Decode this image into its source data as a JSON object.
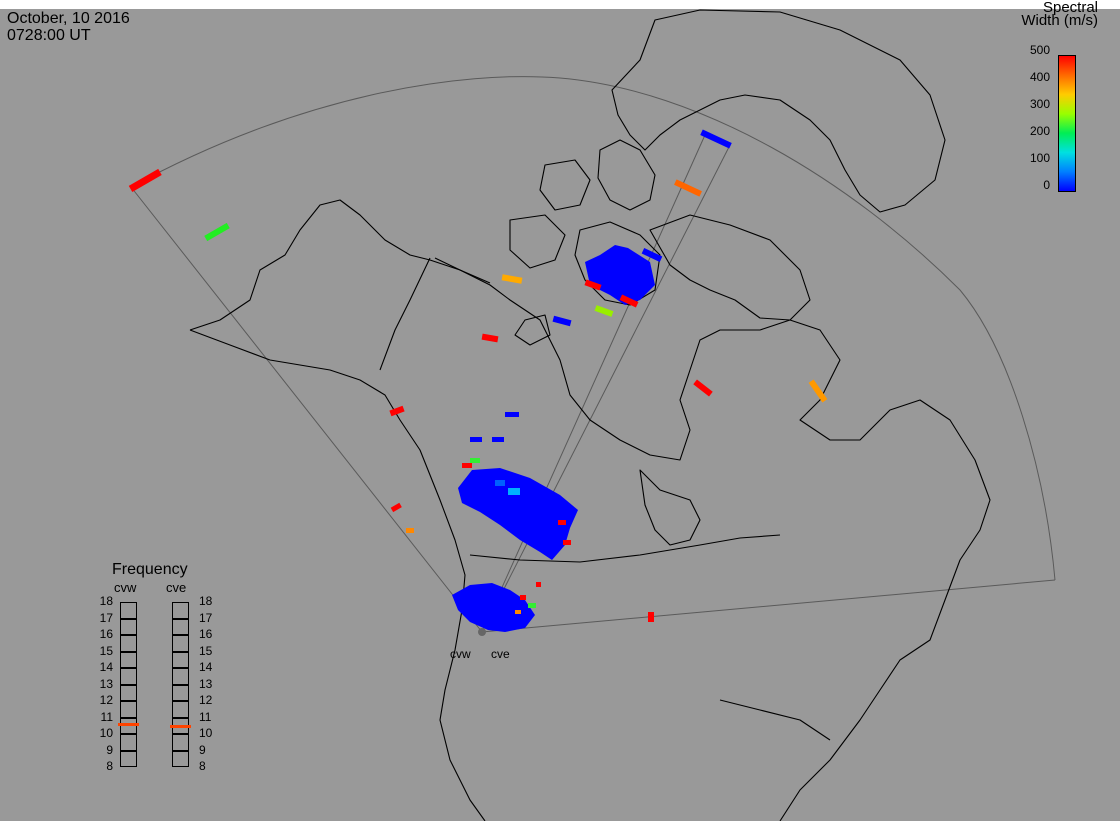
{
  "header": {
    "date": "October, 10 2016",
    "time": "0728:00 UT"
  },
  "colorbar": {
    "title_line1": "Spectral",
    "title_line2": "Width (m/s)",
    "ticks": [
      "500",
      "400",
      "300",
      "200",
      "100",
      "0"
    ],
    "gradient": [
      "#ff0000",
      "#ff6a00",
      "#ffcc00",
      "#99ff00",
      "#00ee55",
      "#00e0e0",
      "#0080ff",
      "#0000ff"
    ]
  },
  "frequency_panel": {
    "title": "Frequency",
    "radars": [
      {
        "name": "cvw",
        "frequency_mhz": 10.6
      },
      {
        "name": "cve",
        "frequency_mhz": 10.5
      }
    ],
    "scale_min": 8,
    "scale_max": 18,
    "ticks": [
      "18",
      "17",
      "16",
      "15",
      "14",
      "13",
      "12",
      "11",
      "10",
      "9",
      "8"
    ],
    "marker_color": "#ff4400"
  },
  "map": {
    "background": "#999999",
    "land_outline": "#000000",
    "fov_outline": "#555555",
    "radars": [
      {
        "name": "cvw"
      },
      {
        "name": "cve"
      }
    ]
  }
}
